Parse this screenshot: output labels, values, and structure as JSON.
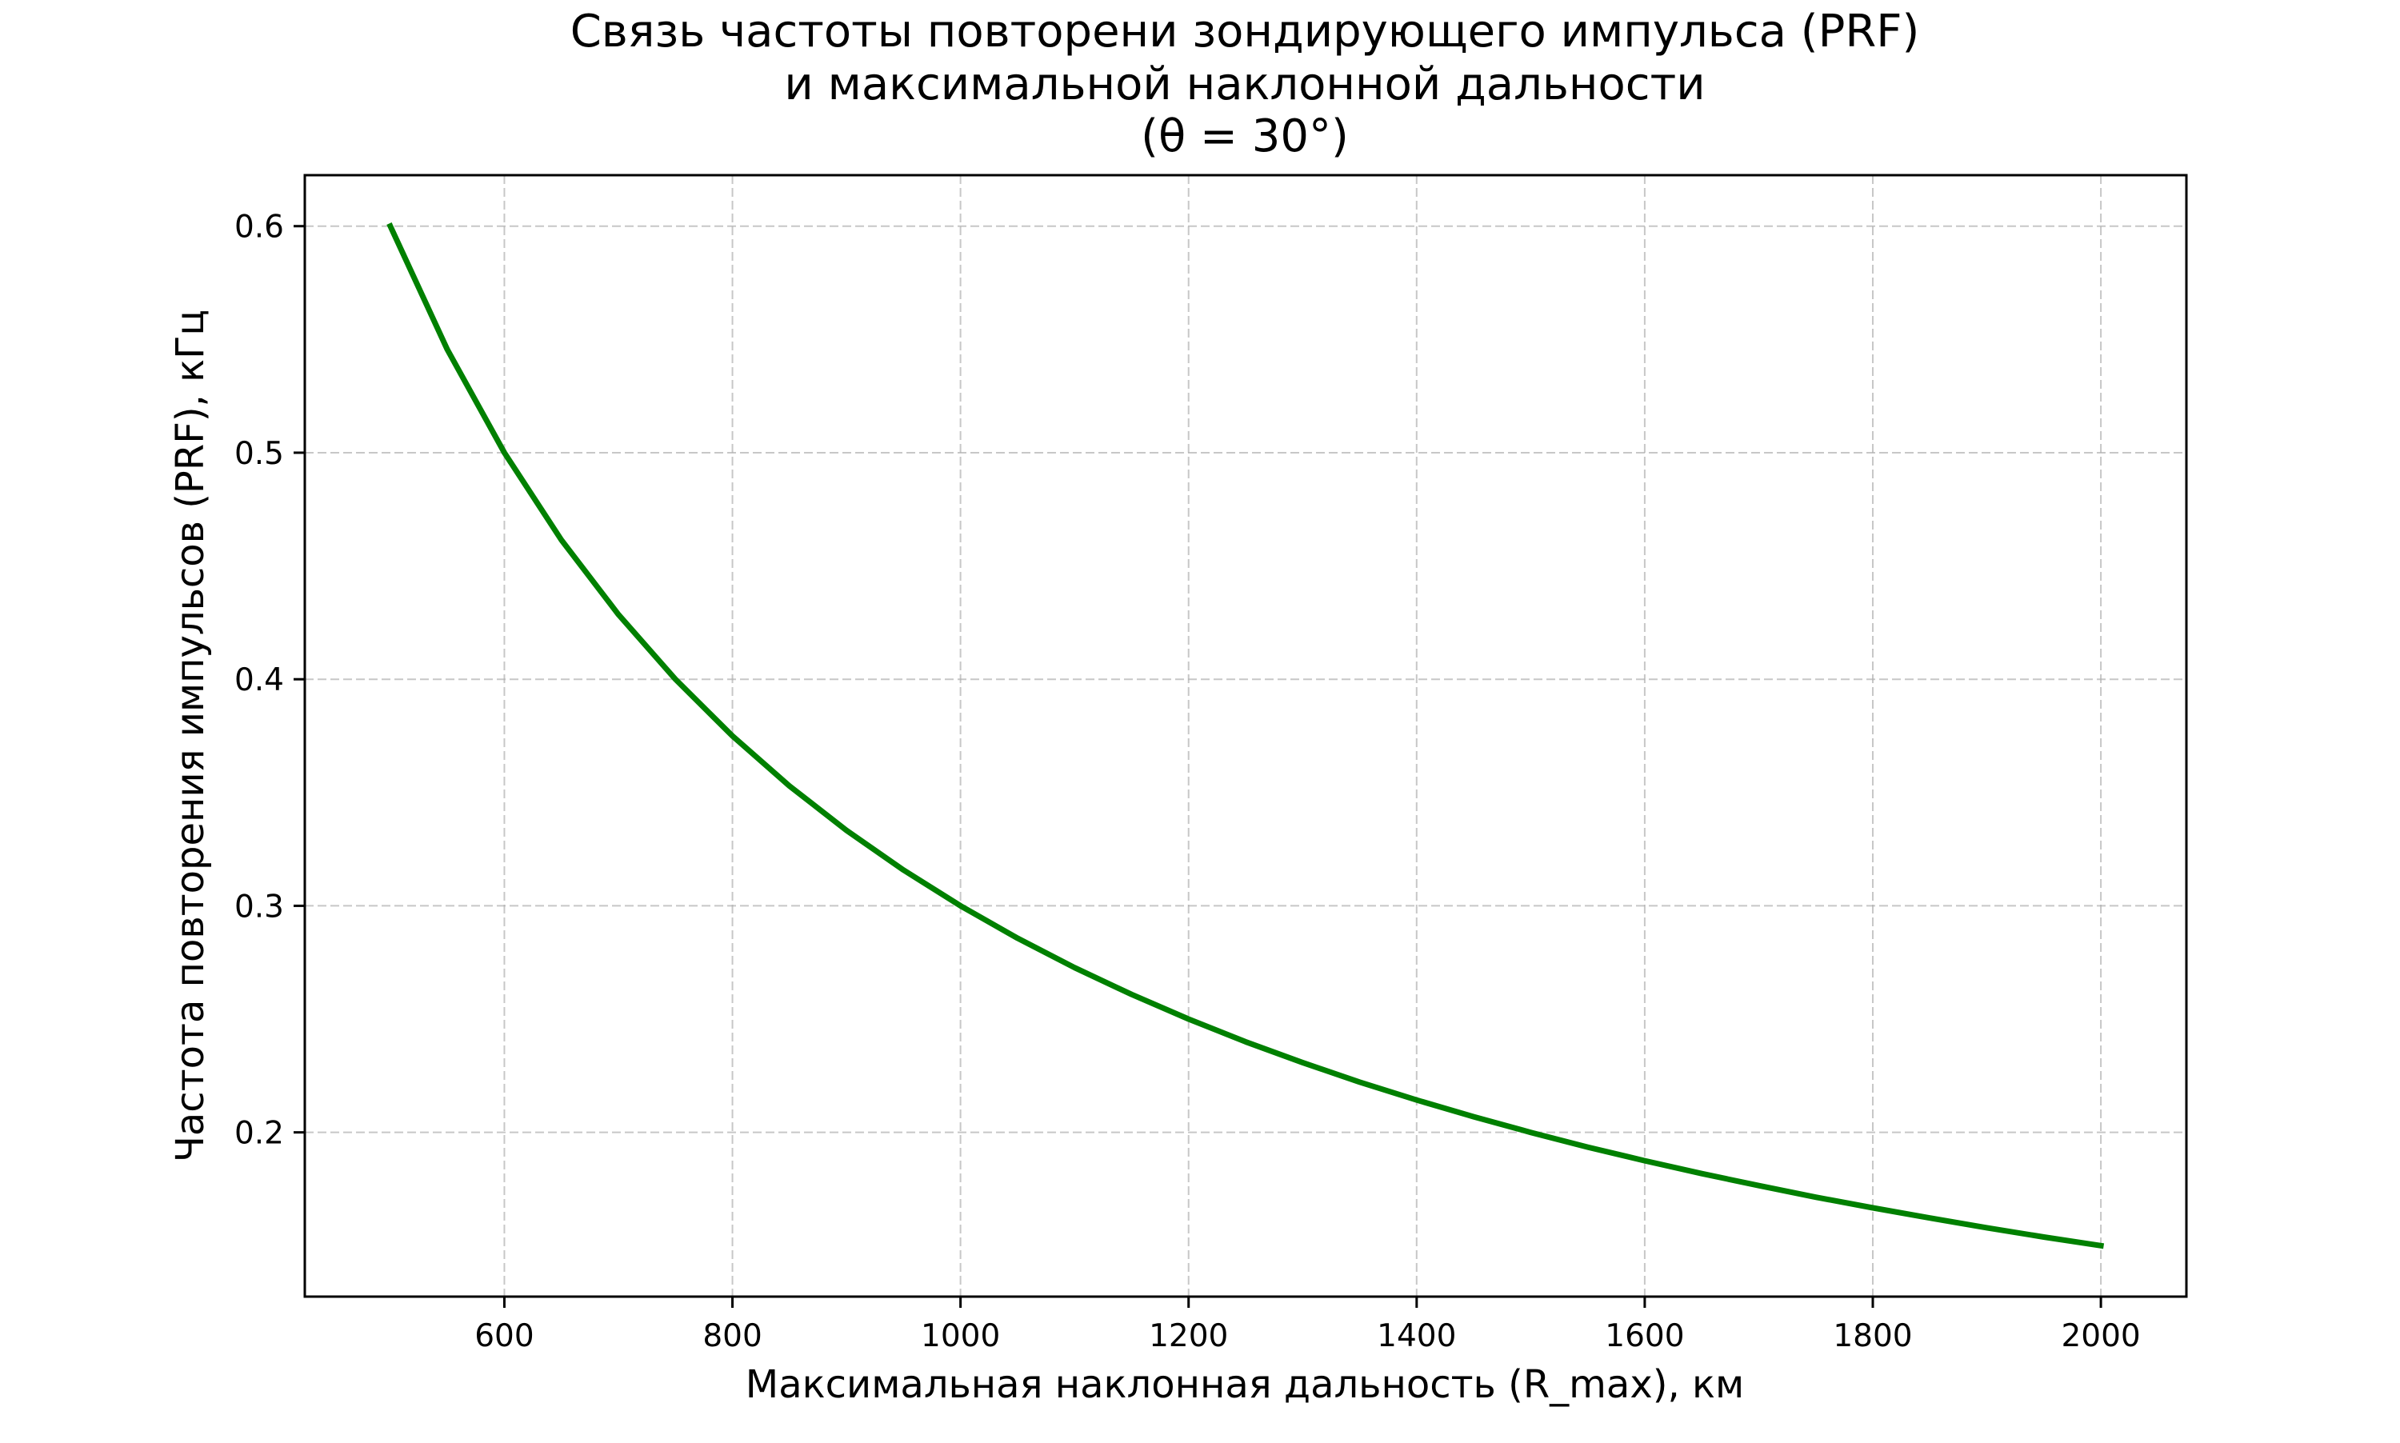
{
  "chart_data": {
    "type": "line",
    "title_lines": [
      "Связь частоты повторени зондирующего импульса (PRF)",
      "и максимальной наклонной дальности",
      "(θ = 30°)"
    ],
    "xlabel": "Максимальная наклонная дальность (R_max), км",
    "ylabel": "Частота повторения импульсов (PRF), кГц",
    "xlim": [
      425,
      2075
    ],
    "ylim": [
      0.1275,
      0.6225
    ],
    "x_ticks": [
      {
        "value": 600,
        "label": "600"
      },
      {
        "value": 800,
        "label": "800"
      },
      {
        "value": 1000,
        "label": "1000"
      },
      {
        "value": 1200,
        "label": "1200"
      },
      {
        "value": 1400,
        "label": "1400"
      },
      {
        "value": 1600,
        "label": "1600"
      },
      {
        "value": 1800,
        "label": "1800"
      },
      {
        "value": 2000,
        "label": "2000"
      }
    ],
    "y_ticks": [
      {
        "value": 0.2,
        "label": "0.2"
      },
      {
        "value": 0.3,
        "label": "0.3"
      },
      {
        "value": 0.4,
        "label": "0.4"
      },
      {
        "value": 0.5,
        "label": "0.5"
      },
      {
        "value": 0.6,
        "label": "0.6"
      }
    ],
    "grid": true,
    "legend": "none",
    "series": [
      {
        "color": "#008000",
        "x": [
          500,
          550,
          600,
          650,
          700,
          750,
          800,
          850,
          900,
          950,
          1000,
          1050,
          1100,
          1150,
          1200,
          1250,
          1300,
          1350,
          1400,
          1450,
          1500,
          1550,
          1600,
          1650,
          1700,
          1750,
          1800,
          1850,
          1900,
          1950,
          2000
        ],
        "y": [
          0.6,
          0.5455,
          0.5,
          0.4615,
          0.4286,
          0.4,
          0.375,
          0.3529,
          0.3333,
          0.3158,
          0.3,
          0.2857,
          0.2727,
          0.2609,
          0.25,
          0.24,
          0.2308,
          0.2222,
          0.2143,
          0.2069,
          0.2,
          0.1935,
          0.1875,
          0.1818,
          0.1765,
          0.1714,
          0.1667,
          0.1622,
          0.1579,
          0.1538,
          0.15
        ]
      }
    ]
  },
  "colors": {
    "line": "#008000",
    "grid": "#b0b0b0",
    "axes": "#000000",
    "background": "#ffffff"
  }
}
